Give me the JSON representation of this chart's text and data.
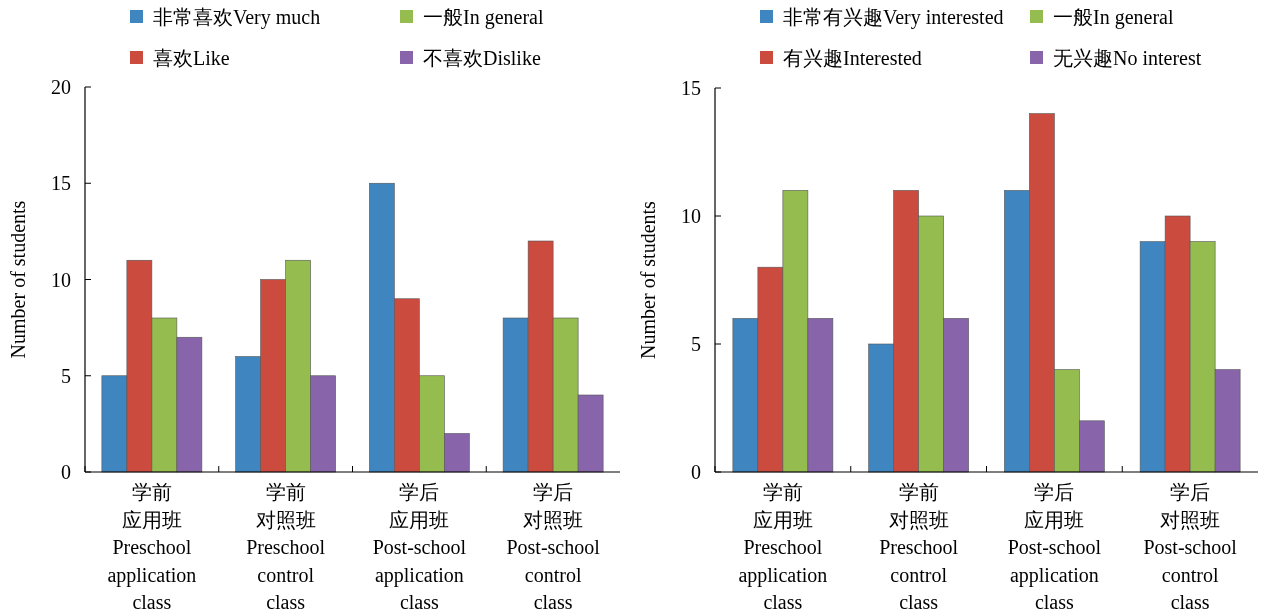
{
  "chart_data": [
    {
      "type": "bar",
      "ylabel": "Number of students",
      "categories": [
        "学前应用班\nPreschool\napplication\nclass",
        "学前对照班\nPreschool\ncontrol\nclass",
        "学后应用班\nPost-school\napplication\nclass",
        "学后对照班\nPost-school\ncontrol\nclass"
      ],
      "ylim": [
        0,
        20
      ],
      "yticks": [
        0,
        5,
        10,
        15,
        20
      ],
      "legend": "top",
      "series": [
        {
          "name": "非常喜欢Very much",
          "color": "#3f86c0",
          "values": [
            5,
            6,
            15,
            8
          ]
        },
        {
          "name": "喜欢Like",
          "color": "#cc4b3f",
          "values": [
            11,
            10,
            9,
            12
          ]
        },
        {
          "name": "一般In general",
          "color": "#94bc4f",
          "values": [
            8,
            11,
            5,
            8
          ]
        },
        {
          "name": "不喜欢Dislike",
          "color": "#8865ab",
          "values": [
            7,
            5,
            2,
            4
          ]
        }
      ]
    },
    {
      "type": "bar",
      "ylabel": "Number of students",
      "categories": [
        "学前应用班\nPreschool\napplication\nclass",
        "学前对照班\nPreschool\ncontrol\nclass",
        "学后应用班\nPost-school\napplication\nclass",
        "学后对照班\nPost-school\ncontrol\nclass"
      ],
      "ylim": [
        0,
        15
      ],
      "yticks": [
        0,
        5,
        10,
        15
      ],
      "legend": "top",
      "series": [
        {
          "name": "非常有兴趣Very interested",
          "color": "#3f86c0",
          "values": [
            6,
            5,
            11,
            9
          ]
        },
        {
          "name": "有兴趣Interested",
          "color": "#cc4b3f",
          "values": [
            8,
            11,
            14,
            10
          ]
        },
        {
          "name": "一般In general",
          "color": "#94bc4f",
          "values": [
            11,
            10,
            4,
            9
          ]
        },
        {
          "name": "无兴趣No interest",
          "color": "#8865ab",
          "values": [
            6,
            6,
            2,
            4
          ]
        }
      ]
    }
  ]
}
